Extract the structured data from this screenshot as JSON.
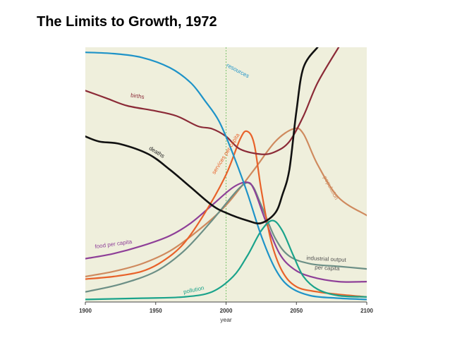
{
  "slide": {
    "title": "The Limits to Growth, 1972"
  },
  "colors": {
    "background": "#efefdc",
    "resources": "#1e93c8",
    "births": "#8b2a37",
    "deaths": "#111111",
    "services": "#e8622a",
    "population": "#cf8a5e",
    "food": "#8e3f98",
    "industrial": "#6c8f86",
    "pollution": "#1aa38b",
    "marker": "#7cc36b"
  },
  "chart_data": {
    "type": "line",
    "title": "The Limits to Growth, 1972",
    "xlabel": "year",
    "ylabel": "",
    "xlim": [
      1900,
      2100
    ],
    "ylim": [
      0,
      100
    ],
    "xticks": [
      "1900",
      "1950",
      "2000",
      "2050",
      "2100"
    ],
    "reference_line": {
      "x": 2000,
      "style": "dashed"
    },
    "series": [
      {
        "name": "resources",
        "key": "resources",
        "label": "resources",
        "points": [
          [
            1900,
            98
          ],
          [
            1920,
            97.5
          ],
          [
            1940,
            96
          ],
          [
            1960,
            92
          ],
          [
            1975,
            86
          ],
          [
            1985,
            79
          ],
          [
            1995,
            71
          ],
          [
            2005,
            58
          ],
          [
            2015,
            43
          ],
          [
            2025,
            26
          ],
          [
            2035,
            13
          ],
          [
            2045,
            6
          ],
          [
            2060,
            2.5
          ],
          [
            2080,
            1.5
          ],
          [
            2100,
            1
          ]
        ]
      },
      {
        "name": "births",
        "key": "births",
        "label": "births",
        "points": [
          [
            1900,
            83
          ],
          [
            1915,
            80
          ],
          [
            1930,
            77
          ],
          [
            1950,
            75
          ],
          [
            1965,
            73
          ],
          [
            1980,
            69
          ],
          [
            1990,
            68
          ],
          [
            2000,
            65
          ],
          [
            2010,
            60
          ],
          [
            2025,
            58
          ],
          [
            2035,
            59
          ],
          [
            2045,
            63
          ],
          [
            2055,
            73
          ],
          [
            2065,
            86
          ],
          [
            2080,
            100
          ]
        ]
      },
      {
        "name": "deaths",
        "key": "deaths",
        "label": "deaths",
        "points": [
          [
            1900,
            65
          ],
          [
            1910,
            63
          ],
          [
            1925,
            62
          ],
          [
            1945,
            58
          ],
          [
            1960,
            52
          ],
          [
            1975,
            45
          ],
          [
            1990,
            38
          ],
          [
            2000,
            35
          ],
          [
            2015,
            32
          ],
          [
            2025,
            31
          ],
          [
            2035,
            35
          ],
          [
            2040,
            42
          ],
          [
            2045,
            52
          ],
          [
            2050,
            75
          ],
          [
            2055,
            92
          ],
          [
            2065,
            100
          ]
        ]
      },
      {
        "name": "services per capita",
        "key": "services",
        "label": "services per capita",
        "points": [
          [
            1900,
            9
          ],
          [
            1920,
            10
          ],
          [
            1940,
            12
          ],
          [
            1955,
            16
          ],
          [
            1970,
            23
          ],
          [
            1985,
            35
          ],
          [
            2000,
            50
          ],
          [
            2010,
            64
          ],
          [
            2015,
            67
          ],
          [
            2020,
            62
          ],
          [
            2025,
            44
          ],
          [
            2032,
            24
          ],
          [
            2040,
            12
          ],
          [
            2050,
            6
          ],
          [
            2065,
            4
          ],
          [
            2080,
            3
          ],
          [
            2100,
            2
          ]
        ]
      },
      {
        "name": "population",
        "key": "population",
        "label": "population",
        "points": [
          [
            1900,
            10
          ],
          [
            1920,
            12
          ],
          [
            1940,
            15
          ],
          [
            1960,
            20
          ],
          [
            1980,
            28
          ],
          [
            2000,
            38
          ],
          [
            2020,
            52
          ],
          [
            2035,
            63
          ],
          [
            2048,
            68
          ],
          [
            2055,
            66
          ],
          [
            2065,
            54
          ],
          [
            2080,
            41
          ],
          [
            2100,
            34
          ]
        ]
      },
      {
        "name": "food per capita",
        "key": "food",
        "label": "food per capita",
        "points": [
          [
            1900,
            17
          ],
          [
            1920,
            19
          ],
          [
            1940,
            22
          ],
          [
            1960,
            26
          ],
          [
            1975,
            31
          ],
          [
            1990,
            38
          ],
          [
            2005,
            45
          ],
          [
            2015,
            47
          ],
          [
            2020,
            44
          ],
          [
            2028,
            32
          ],
          [
            2038,
            19
          ],
          [
            2048,
            13
          ],
          [
            2060,
            10
          ],
          [
            2080,
            8
          ],
          [
            2100,
            8
          ]
        ]
      },
      {
        "name": "industrial output per capita",
        "key": "industrial",
        "label": "industrial output",
        "label2": "per capita",
        "points": [
          [
            1900,
            4
          ],
          [
            1925,
            7
          ],
          [
            1950,
            12
          ],
          [
            1970,
            20
          ],
          [
            1990,
            32
          ],
          [
            2010,
            45
          ],
          [
            2018,
            46
          ],
          [
            2025,
            38
          ],
          [
            2035,
            25
          ],
          [
            2045,
            18
          ],
          [
            2060,
            15
          ],
          [
            2080,
            14
          ],
          [
            2100,
            13
          ]
        ]
      },
      {
        "name": "pollution",
        "key": "pollution",
        "label": "pollution",
        "points": [
          [
            1900,
            1
          ],
          [
            1940,
            1.5
          ],
          [
            1970,
            2
          ],
          [
            1990,
            4
          ],
          [
            2005,
            10
          ],
          [
            2015,
            18
          ],
          [
            2025,
            28
          ],
          [
            2033,
            32
          ],
          [
            2040,
            28
          ],
          [
            2048,
            18
          ],
          [
            2055,
            10
          ],
          [
            2065,
            5
          ],
          [
            2080,
            2.5
          ],
          [
            2100,
            2
          ]
        ]
      }
    ]
  }
}
